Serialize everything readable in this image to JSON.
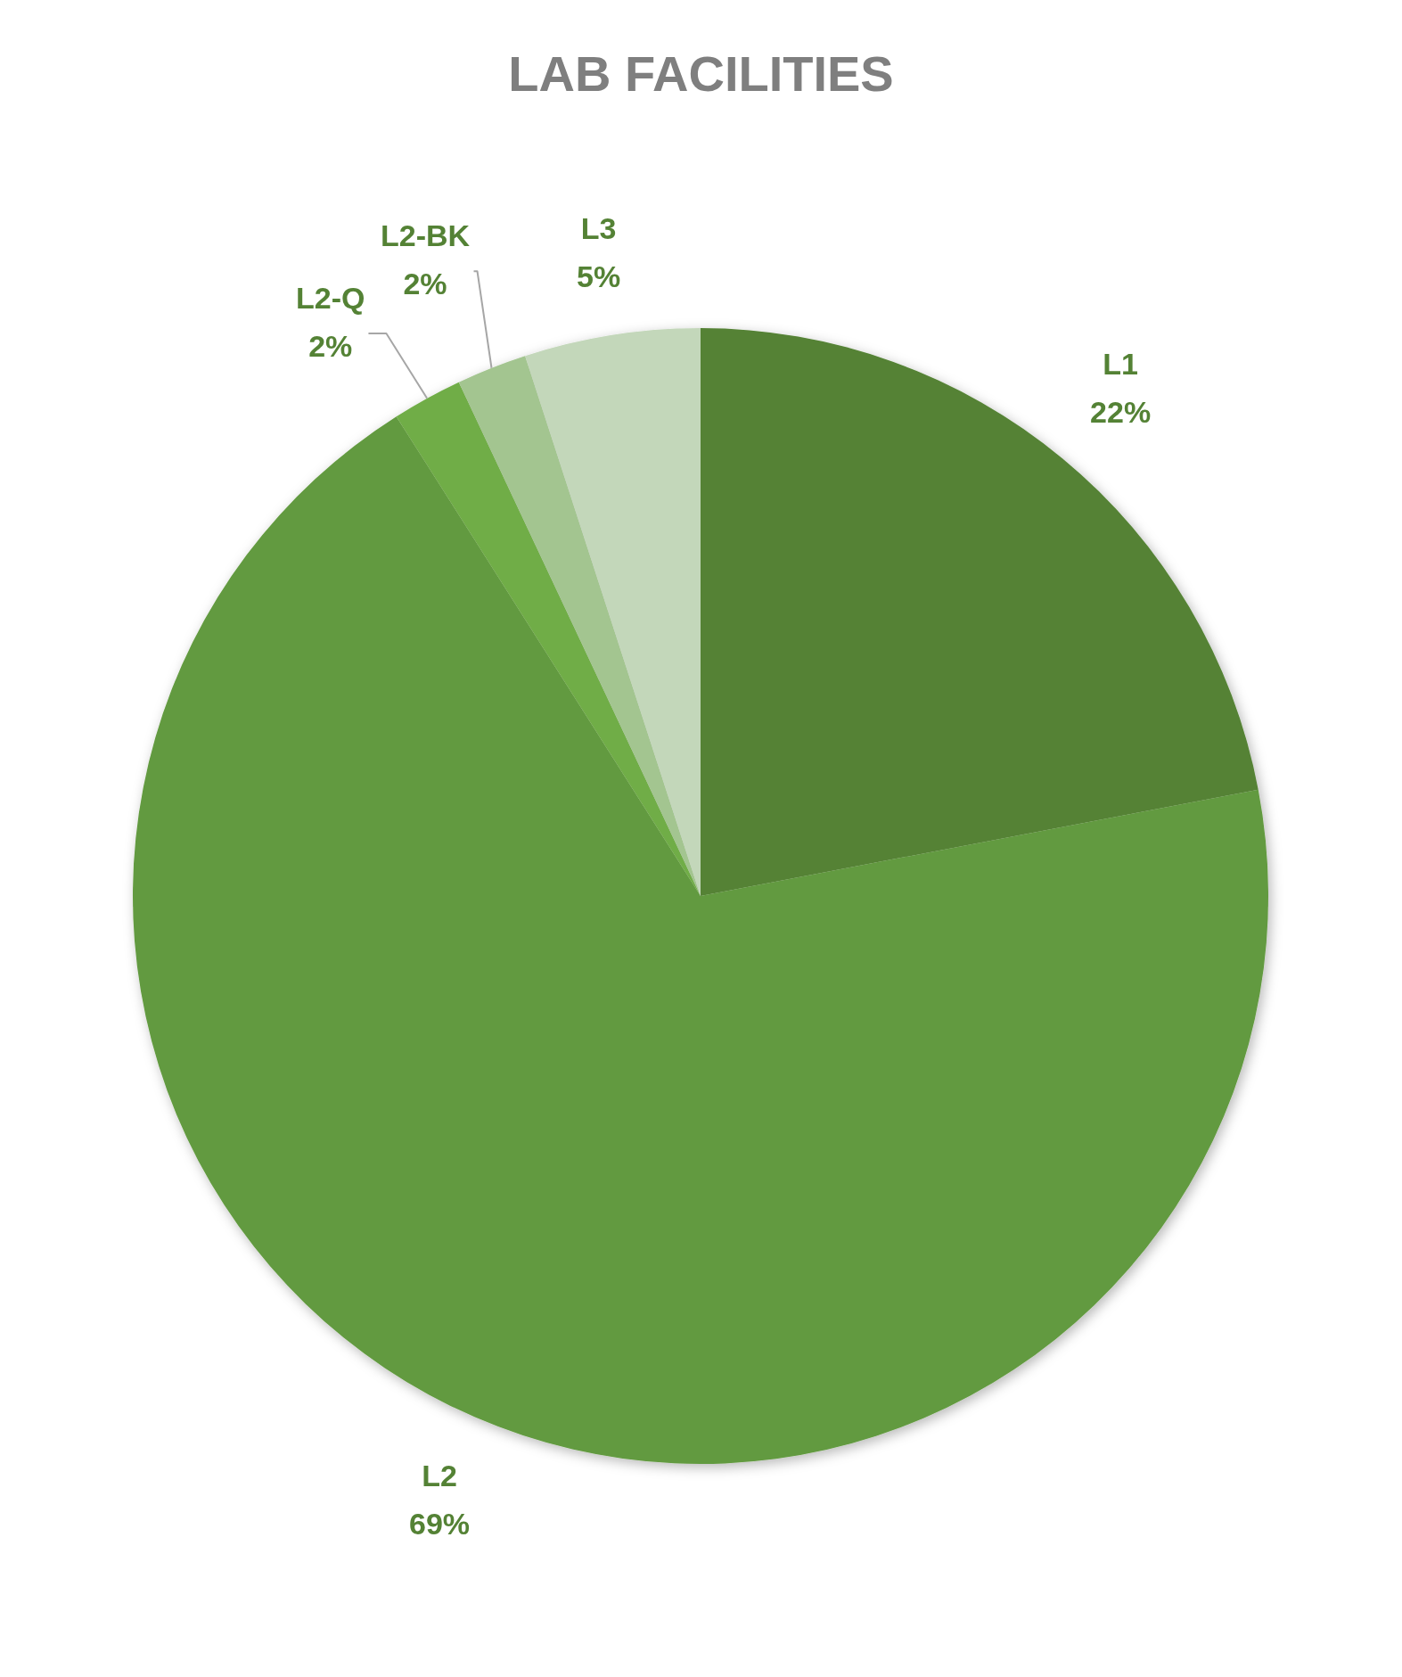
{
  "chart_data": {
    "type": "pie",
    "title": "LAB FACILITIES",
    "categories": [
      "L1",
      "L2",
      "L2-Q",
      "L2-BK",
      "L3"
    ],
    "values": [
      22,
      69,
      2,
      2,
      5
    ],
    "colors": [
      "#548235",
      "#629a3f",
      "#70ad47",
      "#a3c590",
      "#c3d7ba"
    ],
    "value_labels": [
      "22%",
      "69%",
      "2%",
      "2%",
      "5%"
    ]
  }
}
